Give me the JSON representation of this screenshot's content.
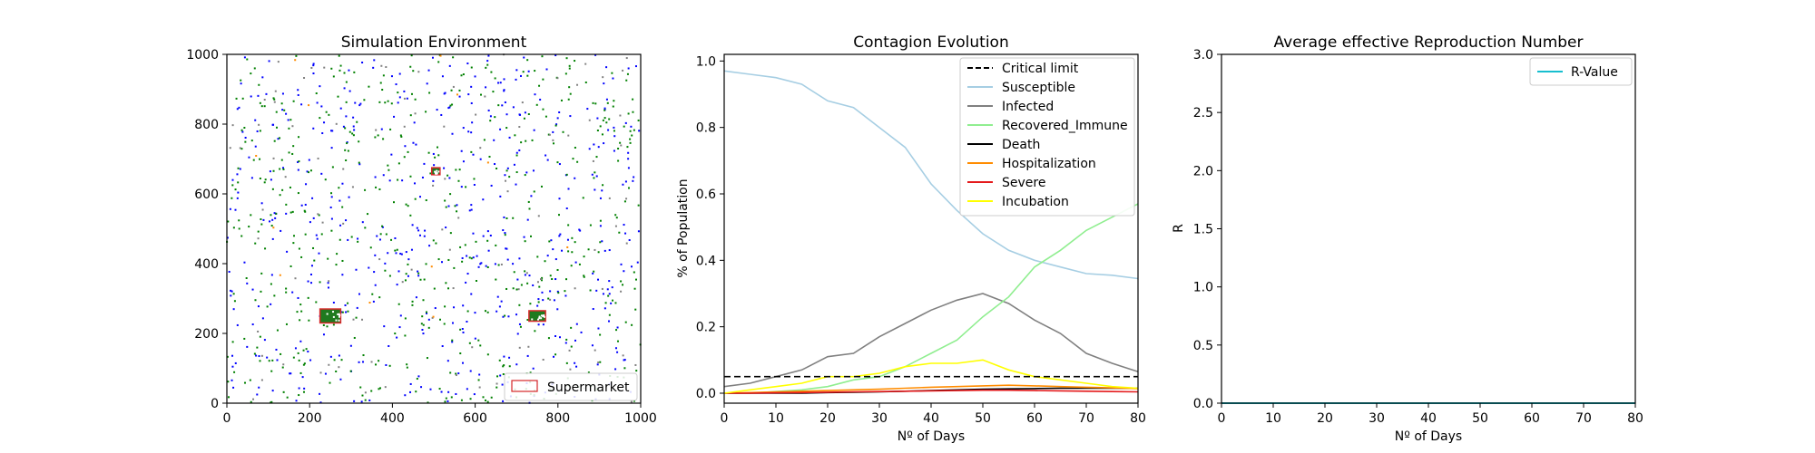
{
  "chart_data": [
    {
      "type": "scatter",
      "title": "Simulation Environment",
      "xlabel": "",
      "ylabel": "",
      "xlim": [
        0,
        1000
      ],
      "ylim": [
        0,
        1000
      ],
      "xticks": [
        0,
        200,
        400,
        600,
        800,
        1000
      ],
      "yticks": [
        0,
        200,
        400,
        600,
        800,
        1000
      ],
      "grid": false,
      "legend_placement": "lower-right",
      "legend": [
        {
          "name": "Supermarket",
          "color": "#d62728"
        }
      ],
      "colors": {
        "susceptible": "#0000ff",
        "recovered": "#008000",
        "infected": "#808080",
        "hospitalization": "#ff8c00",
        "supermarket": "#d62728"
      },
      "supermarkets": [
        {
          "x": [
            495,
            515
          ],
          "y": [
            655,
            675
          ]
        },
        {
          "x": [
            225,
            275
          ],
          "y": [
            230,
            270
          ]
        },
        {
          "x": [
            730,
            770
          ],
          "y": [
            235,
            265
          ]
        }
      ],
      "point_counts": {
        "susceptible": 520,
        "recovered": 560,
        "infected": 110,
        "hospitalization": 12
      }
    },
    {
      "type": "line",
      "title": "Contagion Evolution",
      "xlabel": "Nº of Days",
      "ylabel": "% of Population",
      "xlim": [
        0,
        80
      ],
      "ylim": [
        -0.03,
        1.02
      ],
      "xticks": [
        0,
        10,
        20,
        30,
        40,
        50,
        60,
        70,
        80
      ],
      "yticks": [
        0.0,
        0.2,
        0.4,
        0.6,
        0.8,
        1.0
      ],
      "grid": false,
      "legend_placement": "top-right",
      "x": [
        0,
        5,
        10,
        15,
        20,
        25,
        30,
        35,
        40,
        45,
        50,
        55,
        60,
        65,
        70,
        75,
        80
      ],
      "critical_limit": 0.05,
      "series": [
        {
          "name": "Critical limit",
          "color": "#000000",
          "dashed": true,
          "values": [
            0.05,
            0.05,
            0.05,
            0.05,
            0.05,
            0.05,
            0.05,
            0.05,
            0.05,
            0.05,
            0.05,
            0.05,
            0.05,
            0.05,
            0.05,
            0.05,
            0.05
          ]
        },
        {
          "name": "Susceptible",
          "color": "#a6cee3",
          "values": [
            0.97,
            0.96,
            0.95,
            0.93,
            0.88,
            0.86,
            0.8,
            0.74,
            0.63,
            0.55,
            0.48,
            0.43,
            0.4,
            0.38,
            0.36,
            0.355,
            0.345
          ]
        },
        {
          "name": "Infected",
          "color": "#808080",
          "values": [
            0.02,
            0.03,
            0.05,
            0.07,
            0.11,
            0.12,
            0.17,
            0.21,
            0.25,
            0.28,
            0.3,
            0.27,
            0.22,
            0.18,
            0.12,
            0.09,
            0.065
          ]
        },
        {
          "name": "Recovered_Immune",
          "color": "#90ee90",
          "values": [
            0.0,
            0.0,
            0.005,
            0.01,
            0.02,
            0.04,
            0.05,
            0.08,
            0.12,
            0.16,
            0.23,
            0.29,
            0.38,
            0.43,
            0.49,
            0.53,
            0.57
          ]
        },
        {
          "name": "Death",
          "color": "#000000",
          "values": [
            0.0,
            0.0,
            0.0,
            0.0,
            0.002,
            0.003,
            0.004,
            0.006,
            0.008,
            0.01,
            0.012,
            0.013,
            0.014,
            0.015,
            0.015,
            0.015,
            0.015
          ]
        },
        {
          "name": "Hospitalization",
          "color": "#ff8c00",
          "values": [
            0.0,
            0.002,
            0.004,
            0.006,
            0.008,
            0.01,
            0.012,
            0.015,
            0.018,
            0.02,
            0.022,
            0.024,
            0.022,
            0.02,
            0.018,
            0.016,
            0.014
          ]
        },
        {
          "name": "Severe",
          "color": "#e41a1c",
          "values": [
            0.0,
            0.0,
            0.001,
            0.002,
            0.003,
            0.004,
            0.005,
            0.006,
            0.007,
            0.008,
            0.009,
            0.009,
            0.008,
            0.007,
            0.006,
            0.005,
            0.004
          ]
        },
        {
          "name": "Incubation",
          "color": "#ffff00",
          "values": [
            0.0,
            0.01,
            0.02,
            0.03,
            0.05,
            0.05,
            0.06,
            0.08,
            0.09,
            0.09,
            0.1,
            0.07,
            0.05,
            0.04,
            0.03,
            0.02,
            0.015
          ]
        }
      ]
    },
    {
      "type": "line",
      "title": "Average effective Reproduction Number",
      "xlabel": "Nº of Days",
      "ylabel": "R",
      "xlim": [
        0,
        80
      ],
      "ylim": [
        0,
        3.0
      ],
      "xticks": [
        0,
        10,
        20,
        30,
        40,
        50,
        60,
        70,
        80
      ],
      "yticks": [
        0.0,
        0.5,
        1.0,
        1.5,
        2.0,
        2.5,
        3.0
      ],
      "grid": false,
      "legend_placement": "top-right",
      "x": [
        0,
        80
      ],
      "series": [
        {
          "name": "R-Value",
          "color": "#17becf",
          "values": [
            0,
            0
          ]
        }
      ]
    }
  ]
}
